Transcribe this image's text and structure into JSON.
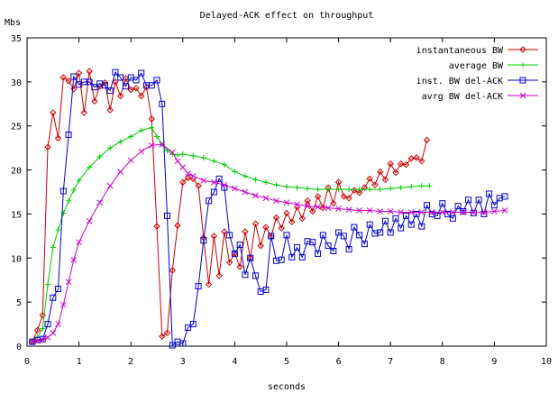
{
  "chart_data": {
    "type": "line",
    "title": "Delayed-ACK effect on throughput",
    "xlabel": "seconds",
    "ylabel": "Mbs",
    "xlim": [
      0,
      10
    ],
    "ylim": [
      0,
      35
    ],
    "xticks": [
      0,
      1,
      2,
      3,
      4,
      5,
      6,
      7,
      8,
      9,
      10
    ],
    "yticks": [
      0,
      5,
      10,
      15,
      20,
      25,
      30,
      35
    ],
    "grid": false,
    "legend_position": "top-right",
    "series": [
      {
        "name": "instantaneous BW",
        "color": "#cc0000",
        "marker": "diamond",
        "points": [
          [
            0.1,
            0.5
          ],
          [
            0.2,
            1.8
          ],
          [
            0.3,
            3.5
          ],
          [
            0.4,
            22.6
          ],
          [
            0.5,
            26.5
          ],
          [
            0.6,
            23.6
          ],
          [
            0.7,
            30.5
          ],
          [
            0.8,
            30.1
          ],
          [
            0.9,
            29.2
          ],
          [
            1.0,
            31.0
          ],
          [
            1.1,
            26.5
          ],
          [
            1.2,
            31.2
          ],
          [
            1.3,
            27.8
          ],
          [
            1.4,
            29.5
          ],
          [
            1.5,
            29.9
          ],
          [
            1.6,
            26.8
          ],
          [
            1.7,
            30.0
          ],
          [
            1.8,
            28.4
          ],
          [
            1.9,
            30.4
          ],
          [
            2.0,
            29.1
          ],
          [
            2.1,
            29.3
          ],
          [
            2.2,
            28.4
          ],
          [
            2.3,
            29.4
          ],
          [
            2.4,
            25.8
          ],
          [
            2.5,
            13.6
          ],
          [
            2.6,
            1.1
          ],
          [
            2.7,
            1.5
          ],
          [
            2.8,
            8.6
          ],
          [
            2.9,
            13.7
          ],
          [
            3.0,
            18.6
          ],
          [
            3.1,
            19.1
          ],
          [
            3.2,
            19.0
          ],
          [
            3.3,
            18.2
          ],
          [
            3.4,
            12.3
          ],
          [
            3.5,
            7.0
          ],
          [
            3.6,
            12.5
          ],
          [
            3.7,
            8.0
          ],
          [
            3.8,
            13.0
          ],
          [
            3.9,
            9.5
          ],
          [
            4.0,
            10.5
          ],
          [
            4.1,
            9.0
          ],
          [
            4.2,
            13.0
          ],
          [
            4.3,
            10.0
          ],
          [
            4.4,
            13.9
          ],
          [
            4.5,
            11.4
          ],
          [
            4.6,
            13.5
          ],
          [
            4.7,
            12.4
          ],
          [
            4.8,
            14.6
          ],
          [
            4.9,
            13.4
          ],
          [
            5.0,
            15.1
          ],
          [
            5.1,
            14.1
          ],
          [
            5.2,
            15.8
          ],
          [
            5.3,
            14.5
          ],
          [
            5.4,
            16.5
          ],
          [
            5.5,
            15.3
          ],
          [
            5.6,
            17.0
          ],
          [
            5.7,
            15.7
          ],
          [
            5.8,
            18.0
          ],
          [
            5.9,
            16.2
          ],
          [
            6.0,
            18.6
          ],
          [
            6.1,
            17.0
          ],
          [
            6.2,
            16.8
          ],
          [
            6.3,
            17.7
          ],
          [
            6.4,
            17.4
          ],
          [
            6.5,
            18.0
          ],
          [
            6.6,
            19.0
          ],
          [
            6.7,
            18.3
          ],
          [
            6.8,
            19.8
          ],
          [
            6.9,
            18.9
          ],
          [
            7.0,
            20.7
          ],
          [
            7.1,
            19.7
          ],
          [
            7.2,
            20.7
          ],
          [
            7.3,
            20.6
          ],
          [
            7.4,
            21.3
          ],
          [
            7.5,
            21.4
          ],
          [
            7.6,
            21.0
          ],
          [
            7.7,
            23.4
          ]
        ]
      },
      {
        "name": "average BW",
        "color": "#00cc00",
        "marker": "plus",
        "points": [
          [
            0.1,
            0.5
          ],
          [
            0.2,
            1.0
          ],
          [
            0.3,
            2.0
          ],
          [
            0.4,
            7.0
          ],
          [
            0.5,
            11.2
          ],
          [
            0.6,
            13.2
          ],
          [
            0.7,
            15.1
          ],
          [
            0.8,
            16.5
          ],
          [
            0.9,
            17.7
          ],
          [
            1.0,
            18.8
          ],
          [
            1.2,
            20.3
          ],
          [
            1.4,
            21.5
          ],
          [
            1.6,
            22.5
          ],
          [
            1.8,
            23.2
          ],
          [
            2.0,
            23.8
          ],
          [
            2.2,
            24.5
          ],
          [
            2.4,
            24.8
          ],
          [
            2.5,
            23.8
          ],
          [
            2.6,
            22.9
          ],
          [
            2.7,
            22.2
          ],
          [
            2.8,
            21.8
          ],
          [
            2.9,
            21.7
          ],
          [
            3.0,
            21.8
          ],
          [
            3.2,
            21.6
          ],
          [
            3.4,
            21.4
          ],
          [
            3.6,
            21.0
          ],
          [
            3.8,
            20.6
          ],
          [
            4.0,
            19.8
          ],
          [
            4.2,
            19.3
          ],
          [
            4.4,
            18.9
          ],
          [
            4.6,
            18.6
          ],
          [
            4.8,
            18.3
          ],
          [
            5.0,
            18.1
          ],
          [
            5.2,
            18.0
          ],
          [
            5.4,
            17.9
          ],
          [
            5.6,
            17.8
          ],
          [
            5.8,
            17.8
          ],
          [
            6.0,
            17.8
          ],
          [
            6.2,
            17.8
          ],
          [
            6.4,
            17.8
          ],
          [
            6.6,
            17.8
          ],
          [
            6.8,
            17.8
          ],
          [
            7.0,
            17.9
          ],
          [
            7.2,
            18.0
          ],
          [
            7.4,
            18.1
          ],
          [
            7.6,
            18.2
          ],
          [
            7.75,
            18.2
          ]
        ]
      },
      {
        "name": "inst. BW del-ACK",
        "color": "#0000cc",
        "marker": "square",
        "points": [
          [
            0.1,
            0.5
          ],
          [
            0.2,
            0.7
          ],
          [
            0.3,
            0.8
          ],
          [
            0.4,
            2.5
          ],
          [
            0.5,
            5.5
          ],
          [
            0.6,
            6.5
          ],
          [
            0.7,
            17.6
          ],
          [
            0.8,
            24.0
          ],
          [
            0.9,
            30.6
          ],
          [
            1.0,
            29.7
          ],
          [
            1.1,
            30.0
          ],
          [
            1.2,
            30.0
          ],
          [
            1.3,
            29.4
          ],
          [
            1.4,
            29.8
          ],
          [
            1.5,
            29.6
          ],
          [
            1.6,
            29.0
          ],
          [
            1.7,
            31.1
          ],
          [
            1.8,
            30.5
          ],
          [
            1.9,
            29.5
          ],
          [
            2.0,
            30.5
          ],
          [
            2.1,
            30.2
          ],
          [
            2.2,
            31.0
          ],
          [
            2.3,
            29.6
          ],
          [
            2.4,
            29.6
          ],
          [
            2.5,
            30.2
          ],
          [
            2.6,
            27.5
          ],
          [
            2.7,
            14.8
          ],
          [
            2.8,
            0.1
          ],
          [
            2.9,
            0.5
          ],
          [
            3.0,
            0.3
          ],
          [
            3.1,
            2.1
          ],
          [
            3.2,
            2.5
          ],
          [
            3.3,
            6.8
          ],
          [
            3.4,
            12.0
          ],
          [
            3.5,
            16.5
          ],
          [
            3.6,
            17.5
          ],
          [
            3.7,
            19.0
          ],
          [
            3.8,
            18.0
          ],
          [
            3.9,
            12.6
          ],
          [
            4.0,
            10.5
          ],
          [
            4.1,
            11.5
          ],
          [
            4.2,
            8.1
          ],
          [
            4.3,
            10.0
          ],
          [
            4.4,
            8.0
          ],
          [
            4.5,
            6.2
          ],
          [
            4.6,
            6.4
          ],
          [
            4.7,
            12.5
          ],
          [
            4.8,
            9.7
          ],
          [
            4.9,
            9.8
          ],
          [
            5.0,
            12.6
          ],
          [
            5.1,
            10.1
          ],
          [
            5.2,
            11.2
          ],
          [
            5.3,
            10.1
          ],
          [
            5.4,
            11.9
          ],
          [
            5.5,
            11.8
          ],
          [
            5.6,
            10.5
          ],
          [
            5.7,
            12.6
          ],
          [
            5.8,
            11.4
          ],
          [
            5.9,
            10.8
          ],
          [
            6.0,
            12.9
          ],
          [
            6.1,
            12.5
          ],
          [
            6.2,
            11.0
          ],
          [
            6.3,
            13.5
          ],
          [
            6.4,
            12.6
          ],
          [
            6.5,
            11.6
          ],
          [
            6.6,
            13.8
          ],
          [
            6.7,
            12.8
          ],
          [
            6.8,
            12.9
          ],
          [
            6.9,
            14.2
          ],
          [
            7.0,
            12.9
          ],
          [
            7.1,
            14.5
          ],
          [
            7.2,
            13.4
          ],
          [
            7.3,
            14.8
          ],
          [
            7.4,
            13.8
          ],
          [
            7.5,
            15.0
          ],
          [
            7.6,
            13.6
          ],
          [
            7.7,
            16.0
          ],
          [
            7.8,
            15.0
          ],
          [
            7.9,
            14.8
          ],
          [
            8.0,
            16.2
          ],
          [
            8.1,
            15.0
          ],
          [
            8.2,
            14.5
          ],
          [
            8.3,
            15.9
          ],
          [
            8.4,
            15.3
          ],
          [
            8.5,
            16.6
          ],
          [
            8.6,
            15.1
          ],
          [
            8.7,
            16.6
          ],
          [
            8.8,
            15.0
          ],
          [
            8.9,
            17.3
          ],
          [
            9.0,
            16.0
          ],
          [
            9.1,
            16.8
          ],
          [
            9.2,
            17.0
          ]
        ]
      },
      {
        "name": "avrg BW del-ACK",
        "color": "#cc00cc",
        "marker": "x",
        "points": [
          [
            0.1,
            0.5
          ],
          [
            0.2,
            0.6
          ],
          [
            0.3,
            0.7
          ],
          [
            0.4,
            1.0
          ],
          [
            0.5,
            1.5
          ],
          [
            0.6,
            2.5
          ],
          [
            0.7,
            4.7
          ],
          [
            0.8,
            7.3
          ],
          [
            0.9,
            9.8
          ],
          [
            1.0,
            11.8
          ],
          [
            1.2,
            14.2
          ],
          [
            1.4,
            16.3
          ],
          [
            1.6,
            18.2
          ],
          [
            1.8,
            19.8
          ],
          [
            2.0,
            21.1
          ],
          [
            2.2,
            22.1
          ],
          [
            2.4,
            22.8
          ],
          [
            2.6,
            22.9
          ],
          [
            2.8,
            22.0
          ],
          [
            2.9,
            21.0
          ],
          [
            3.0,
            20.3
          ],
          [
            3.1,
            19.6
          ],
          [
            3.2,
            19.3
          ],
          [
            3.4,
            18.8
          ],
          [
            3.6,
            18.6
          ],
          [
            3.8,
            18.3
          ],
          [
            4.0,
            17.9
          ],
          [
            4.2,
            17.5
          ],
          [
            4.4,
            17.1
          ],
          [
            4.6,
            16.8
          ],
          [
            4.8,
            16.5
          ],
          [
            5.0,
            16.3
          ],
          [
            5.2,
            16.1
          ],
          [
            5.4,
            15.9
          ],
          [
            5.6,
            15.8
          ],
          [
            5.8,
            15.7
          ],
          [
            6.0,
            15.6
          ],
          [
            6.2,
            15.5
          ],
          [
            6.4,
            15.4
          ],
          [
            6.6,
            15.4
          ],
          [
            6.8,
            15.3
          ],
          [
            7.0,
            15.3
          ],
          [
            7.2,
            15.2
          ],
          [
            7.4,
            15.2
          ],
          [
            7.6,
            15.2
          ],
          [
            7.8,
            15.2
          ],
          [
            8.0,
            15.2
          ],
          [
            8.2,
            15.2
          ],
          [
            8.4,
            15.2
          ],
          [
            8.6,
            15.2
          ],
          [
            8.8,
            15.2
          ],
          [
            9.0,
            15.3
          ],
          [
            9.2,
            15.4
          ]
        ]
      }
    ]
  }
}
